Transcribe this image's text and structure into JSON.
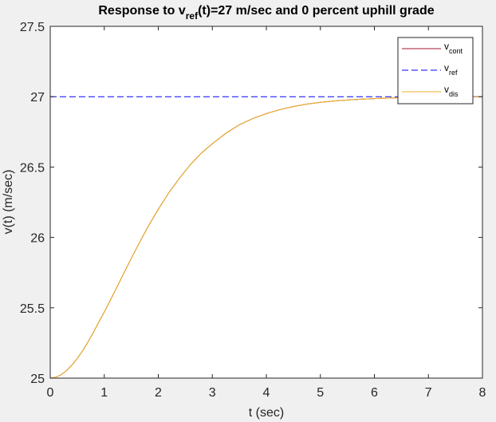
{
  "chart_data": {
    "type": "line",
    "title": {
      "prefix": "Response to v",
      "subscript": "ref",
      "suffix": "(t)=27 m/sec and  0 percent uphill grade"
    },
    "xlabel": "t (sec)",
    "ylabel": "v(t) (m/sec)",
    "xlim": [
      0,
      8
    ],
    "ylim": [
      25,
      27.5
    ],
    "xticks": [
      0,
      1,
      2,
      3,
      4,
      5,
      6,
      7,
      8
    ],
    "xtick_labels": [
      "0",
      "1",
      "2",
      "3",
      "4",
      "5",
      "6",
      "7",
      "8"
    ],
    "yticks": [
      25,
      25.5,
      26,
      26.5,
      27,
      27.5
    ],
    "ytick_labels": [
      "25",
      "25.5",
      "26",
      "26.5",
      "27",
      "27.5"
    ],
    "grid": false,
    "legend_position": "top-right",
    "series": [
      {
        "label_main": "v",
        "label_sub": "cont",
        "color": "#a2142f",
        "style": "solid",
        "x": [
          0,
          0.1,
          0.2,
          0.3,
          0.4,
          0.5,
          0.6,
          0.7,
          0.8,
          0.9,
          1.0,
          1.2,
          1.4,
          1.6,
          1.8,
          2.0,
          2.2,
          2.4,
          2.6,
          2.8,
          3.0,
          3.25,
          3.5,
          3.75,
          4.0,
          4.25,
          4.5,
          4.75,
          5.0,
          5.25,
          5.5,
          5.75,
          6.0,
          6.25,
          6.5,
          6.75,
          7.0,
          7.5,
          8.0
        ],
        "y": [
          25.0,
          25.006,
          25.024,
          25.053,
          25.092,
          25.14,
          25.195,
          25.258,
          25.326,
          25.398,
          25.47,
          25.62,
          25.775,
          25.925,
          26.07,
          26.2,
          26.32,
          26.425,
          26.52,
          26.6,
          26.665,
          26.74,
          26.8,
          26.845,
          26.88,
          26.908,
          26.93,
          26.947,
          26.96,
          26.969,
          26.976,
          26.982,
          26.986,
          26.99,
          26.993,
          26.995,
          26.997,
          26.999,
          27.0
        ]
      },
      {
        "label_main": "v",
        "label_sub": "ref",
        "color": "#0000ff",
        "style": "dashed",
        "x": [
          0,
          8
        ],
        "y": [
          27,
          27
        ]
      },
      {
        "label_main": "v",
        "label_sub": "dis",
        "color": "#edb120",
        "style": "solid",
        "x": [
          0,
          0.1,
          0.2,
          0.3,
          0.4,
          0.5,
          0.6,
          0.7,
          0.8,
          0.9,
          1.0,
          1.2,
          1.4,
          1.6,
          1.8,
          2.0,
          2.2,
          2.4,
          2.6,
          2.8,
          3.0,
          3.25,
          3.5,
          3.75,
          4.0,
          4.25,
          4.5,
          4.75,
          5.0,
          5.25,
          5.5,
          5.75,
          6.0,
          6.25,
          6.5,
          6.75,
          7.0,
          7.5,
          8.0
        ],
        "y": [
          25.0,
          25.006,
          25.024,
          25.053,
          25.092,
          25.14,
          25.195,
          25.258,
          25.326,
          25.398,
          25.47,
          25.62,
          25.775,
          25.925,
          26.07,
          26.2,
          26.32,
          26.425,
          26.52,
          26.6,
          26.665,
          26.74,
          26.8,
          26.845,
          26.88,
          26.908,
          26.93,
          26.947,
          26.96,
          26.969,
          26.976,
          26.982,
          26.986,
          26.99,
          26.993,
          26.995,
          26.997,
          26.999,
          27.0
        ]
      }
    ]
  }
}
